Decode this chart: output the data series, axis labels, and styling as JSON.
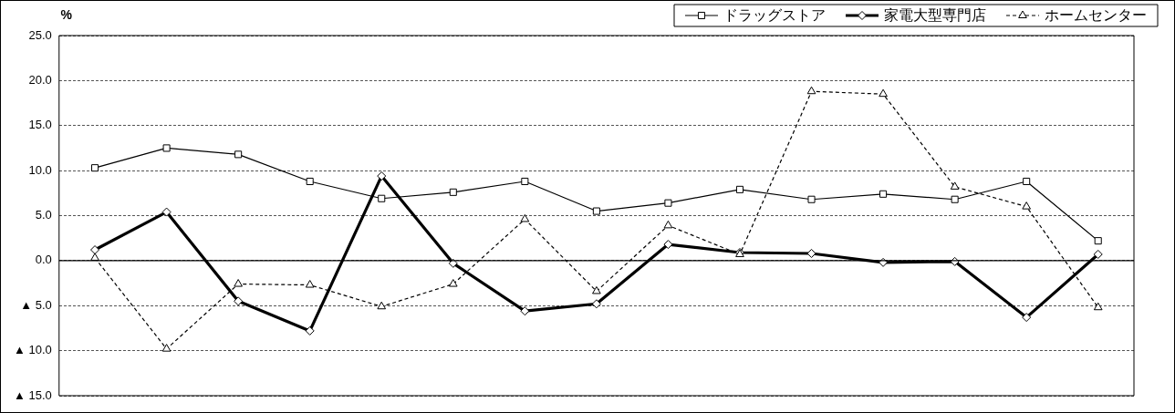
{
  "chart_data": {
    "type": "line",
    "ylabel": "%",
    "categories": [
      null,
      null,
      null,
      null,
      null,
      null,
      null,
      null,
      null,
      null,
      null,
      null,
      null,
      null,
      null
    ],
    "series": [
      {
        "name": "ドラッグストア",
        "color": "#000000",
        "marker": "square",
        "line_style": "solid",
        "values": [
          10.3,
          12.5,
          11.8,
          8.8,
          6.9,
          7.6,
          8.8,
          5.5,
          6.4,
          7.9,
          6.8,
          7.4,
          6.8,
          8.8,
          2.2
        ]
      },
      {
        "name": "家電大型専門店",
        "color": "#000000",
        "marker": "diamond",
        "line_style": "solid",
        "values": [
          1.2,
          5.4,
          -4.5,
          -7.8,
          9.4,
          -0.3,
          -5.6,
          -4.8,
          1.8,
          0.9,
          0.8,
          -0.2,
          -0.1,
          -6.3,
          0.7
        ]
      },
      {
        "name": "ホームセンター",
        "color": "#000000",
        "marker": "triangle",
        "line_style": "dashed",
        "values": [
          0.3,
          -9.8,
          -2.6,
          -2.7,
          -5.1,
          -2.6,
          4.6,
          -3.4,
          3.9,
          0.7,
          18.8,
          18.5,
          8.2,
          6.0,
          -5.2
        ]
      }
    ],
    "ylim": [
      -15,
      25
    ],
    "yticks": [
      {
        "value": -15,
        "label": "▲ 15.0"
      },
      {
        "value": -10,
        "label": "▲ 10.0"
      },
      {
        "value": -5,
        "label": "▲ 5.0"
      },
      {
        "value": 0,
        "label": "0.0"
      },
      {
        "value": 5,
        "label": "5.0"
      },
      {
        "value": 10,
        "label": "10.0"
      },
      {
        "value": 15,
        "label": "15.0"
      },
      {
        "value": 20,
        "label": "20.0"
      },
      {
        "value": 25,
        "label": "25.0"
      }
    ],
    "ref_lines": [
      {
        "axis": "y",
        "value": 0,
        "color": "#000000",
        "line_style": "solid"
      }
    ],
    "grid": "y",
    "legend": "top right",
    "tick_labels": "y"
  }
}
